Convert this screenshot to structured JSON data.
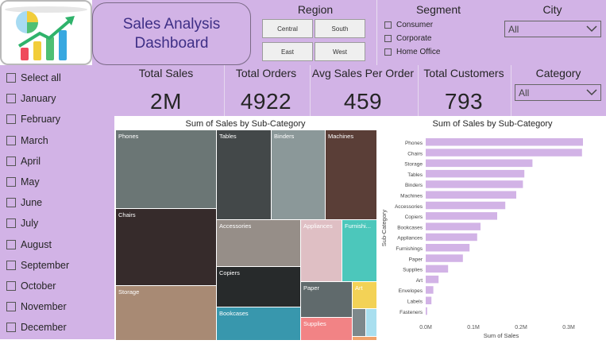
{
  "header": {
    "title_line1": "Sales Analysis",
    "title_line2": "Dashboard"
  },
  "region": {
    "title": "Region",
    "buttons": [
      "Central",
      "South",
      "East",
      "West"
    ]
  },
  "segment": {
    "title": "Segment",
    "items": [
      "Consumer",
      "Corporate",
      "Home Office"
    ]
  },
  "city": {
    "title": "City",
    "selected": "All"
  },
  "category": {
    "title": "Category",
    "selected": "All"
  },
  "months": [
    "Select all",
    "January",
    "February",
    "March",
    "April",
    "May",
    "June",
    "July",
    "August",
    "September",
    "October",
    "November",
    "December"
  ],
  "kpis": [
    {
      "label": "Total Sales",
      "value": "2M"
    },
    {
      "label": "Total Orders",
      "value": "4922"
    },
    {
      "label": "Avg Sales Per Order",
      "value": "459"
    },
    {
      "label": "Total Customers",
      "value": "793"
    }
  ],
  "colors": {
    "panel": "#d2b3e6",
    "title_text": "#3e2f86",
    "bar": "#d2b3e6"
  },
  "chart_data": [
    {
      "type": "treemap",
      "title": "Sum of Sales by Sub-Category",
      "tiles": [
        {
          "label": "Phones",
          "color": "#6b7675"
        },
        {
          "label": "Tables",
          "color": "#434849"
        },
        {
          "label": "Binders",
          "color": "#8b9899"
        },
        {
          "label": "Machines",
          "color": "#5a3e37"
        },
        {
          "label": "Chairs",
          "color": "#362b2b"
        },
        {
          "label": "Accessories",
          "color": "#968e88"
        },
        {
          "label": "Appliances",
          "color": "#dfbfc4"
        },
        {
          "label": "Furnishi...",
          "color": "#4cc7bb"
        },
        {
          "label": "Storage",
          "color": "#a88a74"
        },
        {
          "label": "Copiers",
          "color": "#272a2b"
        },
        {
          "label": "Paper",
          "color": "#606a6c"
        },
        {
          "label": "Art",
          "color": "#f3d256"
        },
        {
          "label": "Bookcases",
          "color": "#3897ad"
        },
        {
          "label": "Supplies",
          "color": "#f28385"
        },
        {
          "label": "",
          "color": "#7d888b"
        },
        {
          "label": "",
          "color": "#a9dfef"
        },
        {
          "label": "",
          "color": "#f0a26b"
        }
      ]
    },
    {
      "type": "bar",
      "title": "Sum of Sales by Sub-Category",
      "ylabel": "Sub-Category",
      "xlabel": "Sum of Sales",
      "xticks": [
        "0.0M",
        "0.1M",
        "0.2M",
        "0.3M"
      ],
      "xlim": [
        0,
        0.35
      ],
      "categories": [
        "Phones",
        "Chairs",
        "Storage",
        "Tables",
        "Binders",
        "Machines",
        "Accessories",
        "Copiers",
        "Bookcases",
        "Appliances",
        "Furnishings",
        "Paper",
        "Supplies",
        "Art",
        "Envelopes",
        "Labels",
        "Fasteners"
      ],
      "values": [
        0.33,
        0.328,
        0.224,
        0.207,
        0.204,
        0.19,
        0.167,
        0.15,
        0.115,
        0.108,
        0.092,
        0.078,
        0.047,
        0.027,
        0.016,
        0.012,
        0.003
      ]
    }
  ]
}
